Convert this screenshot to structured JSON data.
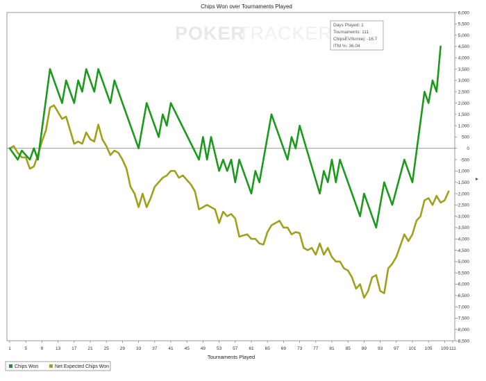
{
  "chart_data": {
    "type": "line",
    "title": "Chips Won over Tournaments Played",
    "xlabel": "Tournaments Played",
    "ylabel": "",
    "xlim": [
      1,
      111
    ],
    "ylim": [
      -8500,
      6000
    ],
    "x_ticks": [
      1,
      5,
      9,
      13,
      17,
      21,
      25,
      29,
      33,
      37,
      41,
      45,
      49,
      53,
      57,
      61,
      65,
      69,
      73,
      77,
      81,
      85,
      89,
      93,
      97,
      101,
      105,
      109,
      111
    ],
    "x_tick_labels": [
      "1",
      "5",
      "9",
      "13",
      "17",
      "21",
      "25",
      "29",
      "33",
      "37",
      "41",
      "45",
      "49",
      "53",
      "57",
      "61",
      "65",
      "69",
      "73",
      "77",
      "81",
      "85",
      "89",
      "93",
      "97",
      "101",
      "105",
      "109",
      "111"
    ],
    "y_ticks": [
      6000,
      5500,
      5000,
      4500,
      4000,
      3500,
      3000,
      2500,
      2000,
      1500,
      1000,
      500,
      0,
      -500,
      -1000,
      -1500,
      -2000,
      -2500,
      -3000,
      -3500,
      -4000,
      -4500,
      -5000,
      -5500,
      -6000,
      -6500,
      -7000,
      -7500,
      -8000,
      -8500
    ],
    "y_tick_labels": [
      "6,000",
      "5,500",
      "5,000",
      "4,500",
      "4,000",
      "3,500",
      "3,000",
      "2,500",
      "2,000",
      "1,500",
      "1,000",
      "500",
      "0",
      "-500",
      "-1,000",
      "-1,500",
      "-2,000",
      "-2,500",
      "-3,000",
      "-3,500",
      "-4,000",
      "-4,500",
      "-5,000",
      "-5,500",
      "-6,000",
      "-6,500",
      "-7,000",
      "-7,500",
      "-8,000",
      "-8,500"
    ],
    "grid": "horizontal zero line",
    "legend": "bottom-left",
    "series": [
      {
        "name": "Chips Won",
        "color": "#1a9a1a",
        "points": [
          [
            1,
            0
          ],
          [
            3,
            -500
          ],
          [
            4,
            -100
          ],
          [
            6,
            -500
          ],
          [
            7,
            0
          ],
          [
            8,
            -500
          ],
          [
            11,
            3500
          ],
          [
            14,
            2000
          ],
          [
            15,
            3000
          ],
          [
            17,
            2000
          ],
          [
            18,
            3000
          ],
          [
            19,
            2500
          ],
          [
            20,
            3500
          ],
          [
            22,
            2500
          ],
          [
            23,
            3500
          ],
          [
            26,
            2000
          ],
          [
            27,
            3000
          ],
          [
            33,
            0
          ],
          [
            35,
            2000
          ],
          [
            38,
            500
          ],
          [
            39,
            1500
          ],
          [
            40,
            1000
          ],
          [
            41,
            2000
          ],
          [
            48,
            -500
          ],
          [
            49,
            500
          ],
          [
            50,
            -500
          ],
          [
            51,
            500
          ],
          [
            53,
            -1000
          ],
          [
            54,
            -500
          ],
          [
            55,
            -1000
          ],
          [
            56,
            -500
          ],
          [
            57,
            -1500
          ],
          [
            58,
            -500
          ],
          [
            61,
            -2000
          ],
          [
            62,
            -1000
          ],
          [
            63,
            -1500
          ],
          [
            66,
            1500
          ],
          [
            70,
            -500
          ],
          [
            71,
            500
          ],
          [
            72,
            0
          ],
          [
            73,
            1000
          ],
          [
            78,
            -2000
          ],
          [
            79,
            -1000
          ],
          [
            80,
            -1500
          ],
          [
            81,
            -500
          ],
          [
            82,
            -1500
          ],
          [
            83,
            -500
          ],
          [
            84,
            -1000
          ],
          [
            88,
            -3000
          ],
          [
            89,
            -2000
          ],
          [
            92,
            -3500
          ],
          [
            94,
            -1500
          ],
          [
            96,
            -2500
          ],
          [
            99,
            -500
          ],
          [
            101,
            -1500
          ],
          [
            104,
            2500
          ],
          [
            105,
            2000
          ],
          [
            106,
            3000
          ],
          [
            107,
            2500
          ],
          [
            108,
            4500
          ]
        ]
      },
      {
        "name": "Net Expected Chips Won",
        "color": "#a0a01a",
        "points": [
          [
            1,
            0
          ],
          [
            2,
            100
          ],
          [
            3,
            -200
          ],
          [
            4,
            -400
          ],
          [
            5,
            -400
          ],
          [
            6,
            -900
          ],
          [
            7,
            -800
          ],
          [
            8,
            -300
          ],
          [
            9,
            300
          ],
          [
            10,
            800
          ],
          [
            11,
            1800
          ],
          [
            12,
            1900
          ],
          [
            13,
            1600
          ],
          [
            14,
            1300
          ],
          [
            15,
            1400
          ],
          [
            16,
            800
          ],
          [
            17,
            200
          ],
          [
            18,
            300
          ],
          [
            19,
            200
          ],
          [
            20,
            700
          ],
          [
            21,
            400
          ],
          [
            22,
            300
          ],
          [
            23,
            1050
          ],
          [
            24,
            400
          ],
          [
            25,
            100
          ],
          [
            26,
            -300
          ],
          [
            27,
            -100
          ],
          [
            28,
            -200
          ],
          [
            29,
            -500
          ],
          [
            30,
            -900
          ],
          [
            31,
            -1700
          ],
          [
            32,
            -2000
          ],
          [
            33,
            -2600
          ],
          [
            34,
            -2000
          ],
          [
            35,
            -2600
          ],
          [
            36,
            -2200
          ],
          [
            37,
            -1700
          ],
          [
            38,
            -1500
          ],
          [
            39,
            -1300
          ],
          [
            40,
            -1200
          ],
          [
            41,
            -1000
          ],
          [
            42,
            -1000
          ],
          [
            43,
            -1300
          ],
          [
            44,
            -1200
          ],
          [
            45,
            -1400
          ],
          [
            46,
            -1600
          ],
          [
            47,
            -1900
          ],
          [
            48,
            -2700
          ],
          [
            49,
            -2600
          ],
          [
            50,
            -2500
          ],
          [
            51,
            -2600
          ],
          [
            52,
            -2700
          ],
          [
            53,
            -3300
          ],
          [
            54,
            -2800
          ],
          [
            55,
            -3000
          ],
          [
            56,
            -2900
          ],
          [
            57,
            -3100
          ],
          [
            58,
            -3900
          ],
          [
            59,
            -3850
          ],
          [
            60,
            -3800
          ],
          [
            61,
            -4000
          ],
          [
            62,
            -4000
          ],
          [
            63,
            -4200
          ],
          [
            64,
            -4250
          ],
          [
            65,
            -3700
          ],
          [
            66,
            -3400
          ],
          [
            67,
            -3300
          ],
          [
            68,
            -3200
          ],
          [
            69,
            -3500
          ],
          [
            70,
            -3500
          ],
          [
            71,
            -3800
          ],
          [
            72,
            -3700
          ],
          [
            73,
            -3750
          ],
          [
            74,
            -4400
          ],
          [
            75,
            -4500
          ],
          [
            76,
            -4400
          ],
          [
            77,
            -4700
          ],
          [
            78,
            -4200
          ],
          [
            79,
            -4700
          ],
          [
            80,
            -4400
          ],
          [
            81,
            -4800
          ],
          [
            82,
            -5000
          ],
          [
            83,
            -5000
          ],
          [
            84,
            -5300
          ],
          [
            85,
            -5400
          ],
          [
            86,
            -5700
          ],
          [
            87,
            -6200
          ],
          [
            88,
            -6000
          ],
          [
            89,
            -6600
          ],
          [
            90,
            -6300
          ],
          [
            91,
            -5700
          ],
          [
            92,
            -5600
          ],
          [
            93,
            -6300
          ],
          [
            94,
            -6400
          ],
          [
            95,
            -5300
          ],
          [
            96,
            -5100
          ],
          [
            97,
            -4800
          ],
          [
            98,
            -4300
          ],
          [
            99,
            -3800
          ],
          [
            100,
            -4100
          ],
          [
            101,
            -3800
          ],
          [
            102,
            -3200
          ],
          [
            103,
            -3000
          ],
          [
            104,
            -2300
          ],
          [
            105,
            -2200
          ],
          [
            106,
            -2500
          ],
          [
            107,
            -2100
          ],
          [
            108,
            -2400
          ],
          [
            109,
            -2300
          ],
          [
            110,
            -1900
          ]
        ]
      }
    ]
  },
  "info_box": {
    "line1": "Days Played: 1",
    "line2": "Tournaments: 111",
    "line3": "ChipsEV/turniej: -16.7",
    "line4": "ITM %: 36.04"
  },
  "watermark": {
    "part1": "POKER",
    "part2": "TRACKER"
  }
}
